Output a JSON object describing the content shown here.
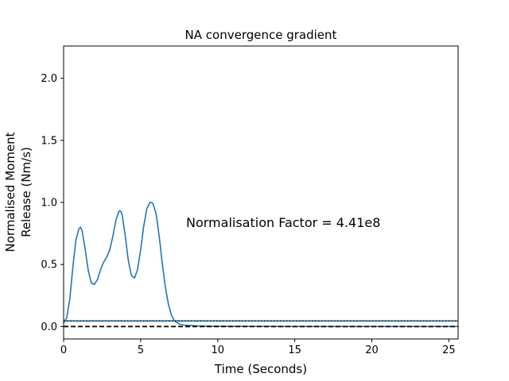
{
  "chart_data": {
    "type": "line",
    "title": "NA convergence gradient",
    "xlabel": "Time (Seconds)",
    "ylabel_lines": [
      "Normalised Moment",
      "Release (Nm/s)"
    ],
    "xlim": [
      0,
      25.6
    ],
    "ylim": [
      -0.1,
      2.26
    ],
    "xticks": [
      0,
      5,
      10,
      15,
      20,
      25
    ],
    "yticks": [
      0.0,
      0.5,
      1.0,
      1.5,
      2.0
    ],
    "xtick_labels": [
      "0",
      "5",
      "10",
      "15",
      "20",
      "25"
    ],
    "ytick_labels": [
      "0.0",
      "0.5",
      "1.0",
      "1.5",
      "2.0"
    ],
    "annotation": "Normalisation Factor = 4.41e8",
    "grid": false,
    "colors": {
      "series": "#1f77b4",
      "baseline": "#000000",
      "frame": "#000000"
    },
    "series": [
      {
        "style": "solid",
        "x": [
          0.0,
          0.2,
          0.4,
          0.6,
          0.8,
          1.0,
          1.1,
          1.2,
          1.4,
          1.6,
          1.8,
          2.0,
          2.2,
          2.4,
          2.6,
          2.8,
          3.0,
          3.2,
          3.4,
          3.6,
          3.7,
          3.8,
          4.0,
          4.2,
          4.4,
          4.6,
          4.8,
          5.0,
          5.2,
          5.4,
          5.6,
          5.7,
          5.8,
          6.0,
          6.2,
          6.4,
          6.6,
          6.8,
          7.0,
          7.2,
          7.5,
          7.8,
          8.0,
          8.5,
          9.0,
          10.0,
          12.0,
          15.0,
          20.0,
          25.6
        ],
        "y": [
          0.03,
          0.07,
          0.22,
          0.48,
          0.7,
          0.79,
          0.8,
          0.77,
          0.62,
          0.45,
          0.35,
          0.34,
          0.38,
          0.46,
          0.52,
          0.56,
          0.62,
          0.73,
          0.86,
          0.93,
          0.93,
          0.9,
          0.73,
          0.53,
          0.41,
          0.39,
          0.46,
          0.62,
          0.81,
          0.95,
          1.0,
          1.0,
          0.99,
          0.91,
          0.73,
          0.51,
          0.32,
          0.18,
          0.09,
          0.045,
          0.02,
          0.012,
          0.01,
          0.006,
          0.004,
          0.002,
          0.001,
          0.0,
          0.0,
          0.0
        ]
      },
      {
        "style": "solid",
        "x": [
          0.0,
          25.6
        ],
        "y": [
          0.045,
          0.045
        ]
      },
      {
        "style": "dotted",
        "x": [
          0.0,
          25.6
        ],
        "y": [
          0.045,
          0.045
        ]
      },
      {
        "style": "dashed",
        "x": [
          0.0,
          25.6
        ],
        "y": [
          0.0,
          0.0
        ]
      }
    ]
  }
}
